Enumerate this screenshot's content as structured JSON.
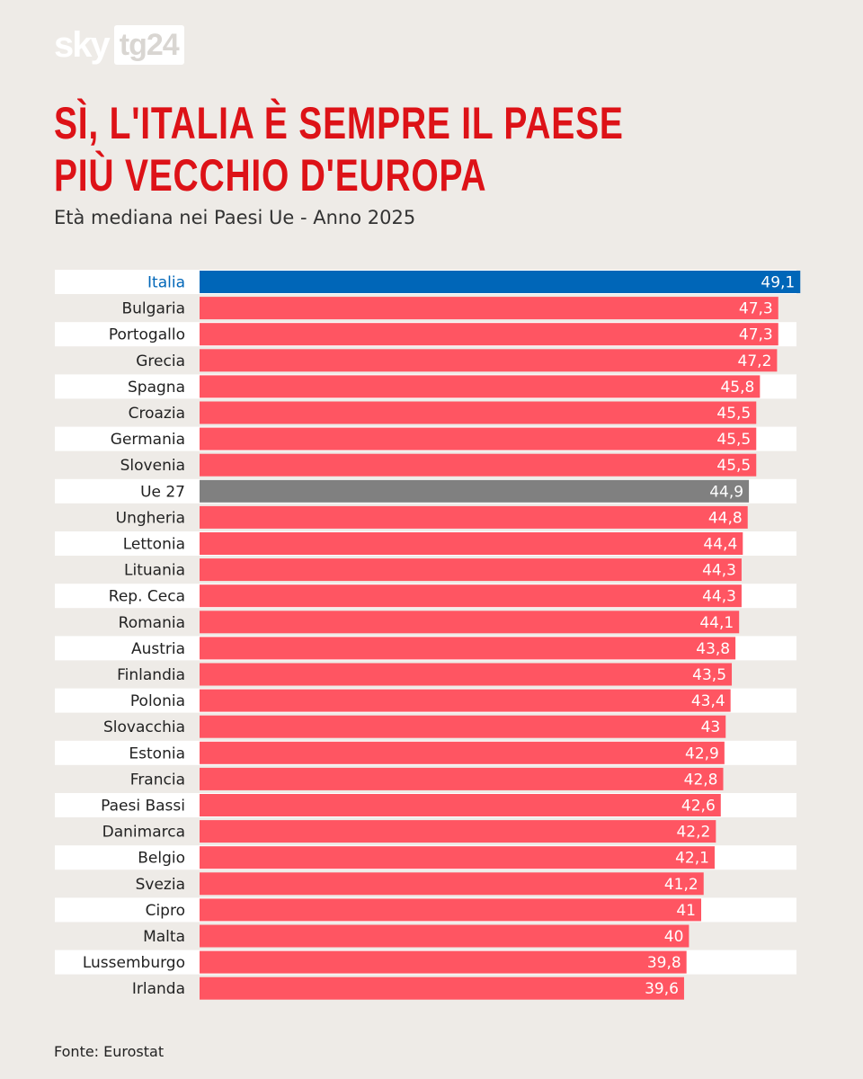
{
  "brand": {
    "sky": "sky",
    "tg": "tg24"
  },
  "title": "SÌ, L'ITALIA È SEMPRE IL PAESE PIÙ VECCHIO D'EUROPA",
  "subtitle": "Età mediana nei Paesi Ue - Anno 2025",
  "source": "Fonte: Eurostat",
  "colors": {
    "highlight": "#0066b8",
    "average": "#808080",
    "default": "#ff5562",
    "highlight_label": "#0066b8",
    "label": "#222222",
    "row_background": "#ffffff",
    "title": "#dd1217"
  },
  "chart_data": {
    "type": "bar",
    "orientation": "horizontal",
    "title": "SÌ, L'ITALIA È SEMPRE IL PAESE PIÙ VECCHIO D'EUROPA",
    "subtitle": "Età mediana nei Paesi Ue - Anno 2025",
    "xlim": [
      0,
      50
    ],
    "categories": [
      "Italia",
      "Bulgaria",
      "Portogallo",
      "Grecia",
      "Spagna",
      "Croazia",
      "Germania",
      "Slovenia",
      "Ue 27",
      "Ungheria",
      "Lettonia",
      "Lituania",
      "Rep. Ceca",
      "Romania",
      "Austria",
      "Finlandia",
      "Polonia",
      "Slovacchia",
      "Estonia",
      "Francia",
      "Paesi Bassi",
      "Danimarca",
      "Belgio",
      "Svezia",
      "Cipro",
      "Malta",
      "Lussemburgo",
      "Irlanda"
    ],
    "values": [
      49.1,
      47.3,
      47.3,
      47.2,
      45.8,
      45.5,
      45.5,
      45.5,
      44.9,
      44.8,
      44.4,
      44.3,
      44.3,
      44.1,
      43.8,
      43.5,
      43.4,
      43,
      42.9,
      42.8,
      42.6,
      42.2,
      42.1,
      41.2,
      41,
      40,
      39.8,
      39.6
    ],
    "value_labels": [
      "49,1",
      "47,3",
      "47,3",
      "47,2",
      "45,8",
      "45,5",
      "45,5",
      "45,5",
      "44,9",
      "44,8",
      "44,4",
      "44,3",
      "44,3",
      "44,1",
      "43,8",
      "43,5",
      "43,4",
      "43",
      "42,9",
      "42,8",
      "42,6",
      "42,2",
      "42,1",
      "41,2",
      "41",
      "40",
      "39,8",
      "39,6"
    ],
    "highlight": "Italia",
    "average": "Ue 27"
  }
}
